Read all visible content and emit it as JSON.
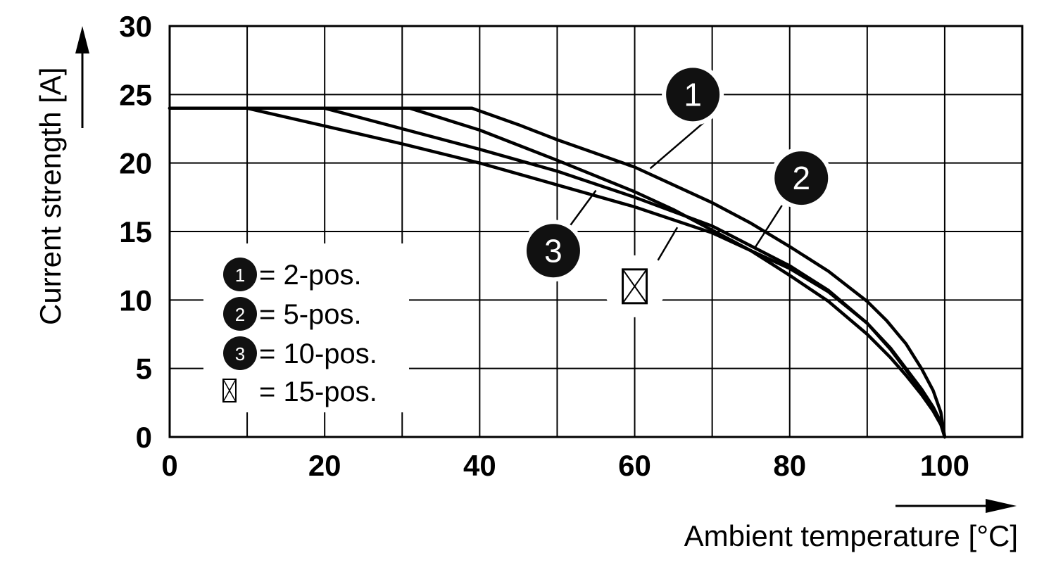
{
  "chart_data": {
    "type": "line",
    "xlabel": "Ambient temperature [°C]",
    "ylabel": "Current strength [A]",
    "xlim": [
      0,
      110
    ],
    "ylim": [
      0,
      30
    ],
    "x_ticks": [
      0,
      20,
      40,
      60,
      80,
      100
    ],
    "y_ticks": [
      0,
      5,
      10,
      15,
      20,
      25,
      30
    ],
    "grid": true,
    "series": [
      {
        "marker": "1",
        "x": [
          0,
          39,
          45,
          50,
          55,
          60,
          65,
          70,
          75,
          80,
          85,
          90,
          92.5,
          95,
          97,
          98.5,
          99.5,
          100
        ],
        "y": [
          24,
          24,
          22.8,
          21.7,
          20.7,
          19.7,
          18.4,
          17.1,
          15.6,
          13.9,
          12.1,
          9.9,
          8.5,
          6.8,
          5.0,
          3.4,
          1.8,
          0
        ]
      },
      {
        "marker": "2",
        "x": [
          0,
          31,
          40,
          50,
          60,
          65,
          70,
          75,
          80,
          85,
          90,
          93,
          95,
          97,
          98.5,
          99.5,
          100
        ],
        "y": [
          24,
          24,
          22.4,
          20.2,
          17.9,
          16.6,
          15.1,
          13.6,
          11.8,
          9.9,
          7.5,
          5.8,
          4.5,
          3.1,
          1.9,
          0.9,
          0
        ]
      },
      {
        "marker": "3",
        "x": [
          0,
          20,
          30,
          40,
          50,
          60,
          70,
          80,
          85,
          90,
          93,
          95,
          97,
          98.5,
          99.5,
          100
        ],
        "y": [
          24,
          24,
          22.5,
          21.0,
          19.4,
          17.5,
          15.4,
          12.5,
          10.7,
          8.3,
          6.4,
          4.9,
          3.4,
          2.1,
          1.0,
          0
        ]
      },
      {
        "marker": "⊠",
        "x": [
          0,
          10,
          20,
          30,
          40,
          50,
          60,
          70,
          80,
          85,
          90,
          93,
          95,
          97,
          98.5,
          99.5,
          100
        ],
        "y": [
          24,
          24,
          22.7,
          21.4,
          20.0,
          18.4,
          16.8,
          14.9,
          12.3,
          10.6,
          8.3,
          6.5,
          5.0,
          3.5,
          2.2,
          1.1,
          0
        ]
      }
    ],
    "callouts": [
      {
        "label": "1",
        "x": 67.5,
        "y": 25.0,
        "lx1": 69.0,
        "ly1": 23.0,
        "lx2": 62.0,
        "ly2": 19.6,
        "style": "badge"
      },
      {
        "label": "2",
        "x": 81.5,
        "y": 18.9,
        "lx1": 79.0,
        "ly1": 16.9,
        "lx2": 75.5,
        "ly2": 13.8,
        "style": "badge"
      },
      {
        "label": "3",
        "x": 49.5,
        "y": 13.6,
        "lx1": 51.5,
        "ly1": 15.3,
        "lx2": 55.0,
        "ly2": 18.0,
        "style": "badge"
      },
      {
        "label": "⊠",
        "x": 60.0,
        "y": 11.0,
        "lx1": 63.0,
        "ly1": 12.9,
        "lx2": 65.5,
        "ly2": 15.3,
        "style": "box"
      }
    ],
    "legend": {
      "position": "lower-left",
      "entries": [
        {
          "marker": "1",
          "text": "= 2-pos."
        },
        {
          "marker": "2",
          "text": "= 5-pos."
        },
        {
          "marker": "3",
          "text": "= 10-pos."
        },
        {
          "marker": "⊠",
          "text": "= 15-pos."
        }
      ]
    }
  }
}
